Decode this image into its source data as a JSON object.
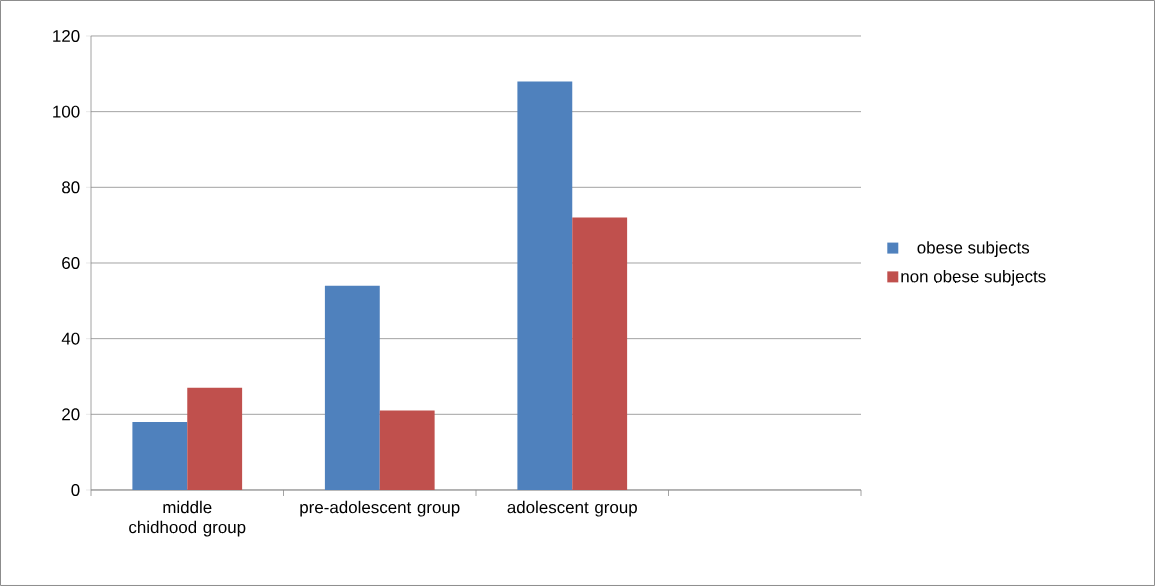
{
  "chart_data": {
    "type": "bar",
    "categories": [
      "middle chidhood group",
      "pre-adolescent group",
      "adolescent group",
      null
    ],
    "series": [
      {
        "name": "obese subjects",
        "color": "#4f81bd",
        "values": [
          18,
          54,
          108,
          null
        ]
      },
      {
        "name": "non obese subjects",
        "color": "#c0504d",
        "values": [
          27,
          21,
          72,
          null
        ]
      }
    ],
    "ylim": [
      0,
      120
    ],
    "yticks": [
      0,
      20,
      40,
      60,
      80,
      100,
      120
    ],
    "grid": "y",
    "legend": "right"
  }
}
